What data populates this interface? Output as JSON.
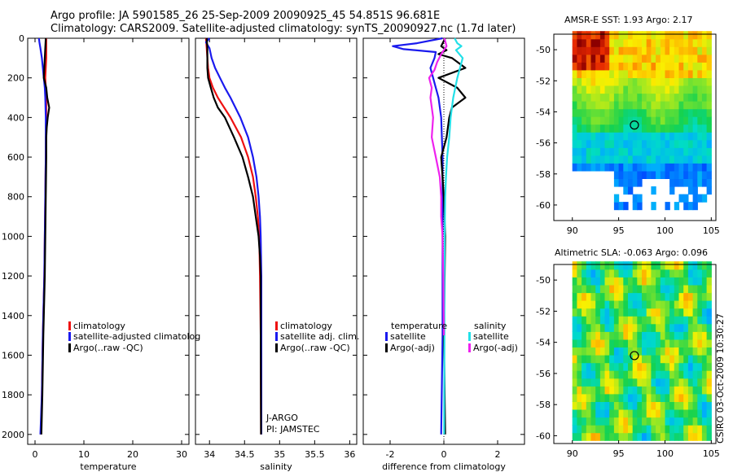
{
  "header": {
    "line1": "Argo profile: JA 5901585_26 25-Sep-2009 20090925_45 54.851S 96.681E",
    "line2": "Climatology: CARS2009. Satellite-adjusted climatology: synTS_20090927.nc (1.7d later)"
  },
  "credit": "CSIRO 03-Oct-2009 10:30:27",
  "colors": {
    "climatology": "#ee1111",
    "satellite": "#1a1aee",
    "argo": "#000000",
    "salinity_satellite": "#22e0e8",
    "salinity_argo": "#ee22ee"
  },
  "chart_data": [
    {
      "type": "line",
      "id": "temperature",
      "xlabel": "temperature",
      "ylabel": "",
      "xlim": [
        -1.5,
        31.5
      ],
      "ylim": [
        2050,
        0
      ],
      "xticks": [
        "0",
        "10",
        "20",
        "30"
      ],
      "yticks": [
        "0",
        "200",
        "400",
        "600",
        "800",
        "1000",
        "1200",
        "1400",
        "1600",
        "1800",
        "2000"
      ],
      "legend": [
        "climatology",
        "satellite-adjusted climatolog",
        "Argo(..raw -QC)"
      ],
      "series": [
        {
          "name": "climatology",
          "color": "#ee1111",
          "depth": [
            0,
            50,
            100,
            150,
            200,
            250,
            300,
            400,
            600,
            800,
            1000,
            1200,
            1500,
            1800,
            2000
          ],
          "values": [
            2.3,
            2.3,
            2.3,
            2.2,
            2.1,
            2.2,
            2.3,
            2.3,
            2.2,
            2.1,
            2.0,
            1.9,
            1.6,
            1.4,
            1.2
          ]
        },
        {
          "name": "satellite-adjusted climatolog",
          "color": "#1a1aee",
          "depth": [
            0,
            20,
            50,
            100,
            150,
            200,
            250,
            300,
            400,
            600,
            800,
            1000,
            1200,
            1500,
            1800,
            2000
          ],
          "values": [
            0.8,
            0.9,
            1.1,
            1.4,
            1.6,
            1.8,
            2.0,
            2.1,
            2.2,
            2.2,
            2.1,
            2.0,
            1.9,
            1.6,
            1.4,
            1.1
          ]
        },
        {
          "name": "Argo(..raw -QC)",
          "color": "#000000",
          "depth": [
            0,
            50,
            100,
            150,
            200,
            250,
            300,
            350,
            400,
            450,
            500,
            600,
            800,
            1000,
            1200,
            1500,
            1800,
            2000
          ],
          "values": [
            2.2,
            2.1,
            2.0,
            1.9,
            1.8,
            2.3,
            2.5,
            2.9,
            2.6,
            2.4,
            2.3,
            2.3,
            2.2,
            2.1,
            2.0,
            1.7,
            1.5,
            1.3
          ]
        }
      ]
    },
    {
      "type": "line",
      "id": "salinity",
      "xlabel": "salinity",
      "ylabel": "",
      "xlim": [
        33.8,
        36.1
      ],
      "ylim": [
        2050,
        0
      ],
      "xticks": [
        "34",
        "34.5",
        "35",
        "35.5",
        "36"
      ],
      "legend": [
        "climatology",
        "satellite adj. clim.",
        "Argo(..raw -QC)"
      ],
      "annotations": [
        "J-ARGO",
        "PI: JAMSTEC"
      ],
      "series": [
        {
          "name": "climatology",
          "color": "#ee1111",
          "depth": [
            0,
            50,
            100,
            150,
            200,
            250,
            300,
            400,
            500,
            600,
            700,
            800,
            900,
            1000,
            1200,
            1500,
            2000
          ],
          "values": [
            33.95,
            33.96,
            33.97,
            33.98,
            34.0,
            34.05,
            34.12,
            34.3,
            34.45,
            34.55,
            34.62,
            34.66,
            34.69,
            34.71,
            34.72,
            34.73,
            34.735
          ]
        },
        {
          "name": "satellite adj. clim.",
          "color": "#1a1aee",
          "depth": [
            0,
            20,
            50,
            100,
            150,
            200,
            250,
            300,
            400,
            500,
            600,
            700,
            800,
            900,
            1000,
            1200,
            1500,
            2000
          ],
          "values": [
            34.0,
            33.95,
            34.0,
            34.03,
            34.08,
            34.15,
            34.22,
            34.3,
            34.44,
            34.55,
            34.62,
            34.67,
            34.7,
            34.72,
            34.73,
            34.74,
            34.74,
            34.74
          ]
        },
        {
          "name": "Argo(..raw -QC)",
          "color": "#000000",
          "depth": [
            0,
            50,
            100,
            150,
            200,
            250,
            300,
            350,
            400,
            500,
            600,
            700,
            800,
            900,
            1000,
            1100,
            1200,
            1500,
            2000
          ],
          "values": [
            33.96,
            33.97,
            33.97,
            33.97,
            33.98,
            34.02,
            34.06,
            34.12,
            34.22,
            34.35,
            34.47,
            34.55,
            34.62,
            34.66,
            34.7,
            34.72,
            34.73,
            34.73,
            34.735
          ]
        }
      ]
    },
    {
      "type": "line",
      "id": "difference",
      "xlabel": "difference from climatology",
      "ylabel": "",
      "xlim": [
        -3.0,
        3.0
      ],
      "ylim": [
        2050,
        0
      ],
      "xticks": [
        "-2",
        "0",
        "2"
      ],
      "legend_temperature_title": "temperature",
      "legend_salinity_title": "salinity",
      "legend": [
        "satellite",
        "Argo(-adj)",
        "satellite",
        "Argo(-adj)"
      ],
      "series": [
        {
          "name": "temperature satellite",
          "color": "#1a1aee",
          "depth": [
            0,
            25,
            40,
            55,
            70,
            100,
            150,
            200,
            250,
            300,
            400,
            600,
            1000,
            1500,
            2000
          ],
          "values": [
            -0.05,
            -1.0,
            -1.9,
            -1.5,
            -0.3,
            -0.35,
            -0.5,
            -0.4,
            -0.3,
            -0.2,
            -0.1,
            -0.05,
            -0.05,
            -0.05,
            -0.1
          ]
        },
        {
          "name": "temperature Argo(-adj)",
          "color": "#000000",
          "depth": [
            0,
            40,
            60,
            80,
            100,
            150,
            200,
            250,
            300,
            350,
            400,
            500,
            600,
            800,
            1000,
            1500,
            2000
          ],
          "values": [
            0.05,
            -0.1,
            0.1,
            -0.2,
            0.3,
            0.8,
            -0.2,
            0.5,
            0.8,
            0.3,
            0.2,
            0.1,
            -0.1,
            0.0,
            0.05,
            0.0,
            0.05
          ]
        },
        {
          "name": "salinity satellite",
          "color": "#22e0e8",
          "depth": [
            0,
            25,
            40,
            60,
            100,
            150,
            200,
            300,
            400,
            500,
            600,
            700,
            800,
            1000,
            1200,
            1500,
            2000
          ],
          "values": [
            0.4,
            0.5,
            0.65,
            0.45,
            0.7,
            0.6,
            0.5,
            0.35,
            0.25,
            0.2,
            0.12,
            0.08,
            0.05,
            0.03,
            0.02,
            0.02,
            0.01
          ]
        },
        {
          "name": "salinity Argo(-adj)",
          "color": "#ee22ee",
          "depth": [
            0,
            40,
            80,
            120,
            160,
            200,
            250,
            300,
            400,
            500,
            600,
            700,
            800,
            900,
            1000,
            1200,
            1500
          ],
          "values": [
            0.02,
            0.1,
            -0.1,
            -0.25,
            -0.35,
            -0.55,
            -0.45,
            -0.5,
            -0.4,
            -0.45,
            -0.3,
            -0.15,
            -0.1,
            -0.1,
            -0.05,
            -0.02,
            0.0
          ]
        }
      ]
    },
    {
      "type": "heatmap",
      "id": "sst",
      "title": "AMSR-E SST: 1.93 Argo: 2.17",
      "xlim": [
        88,
        105.5
      ],
      "ylim": [
        -61,
        -49
      ],
      "xticks": [
        "90",
        "95",
        "100",
        "105"
      ],
      "yticks": [
        "-50",
        "-52",
        "-54",
        "-56",
        "-58",
        "-60"
      ],
      "marker": {
        "lon": 96.7,
        "lat": -54.85
      }
    },
    {
      "type": "heatmap",
      "id": "sla",
      "title": "Altimetric SLA: -0.063 Argo: 0.096",
      "xlim": [
        88,
        105.5
      ],
      "ylim": [
        -60.5,
        -49
      ],
      "xticks": [
        "90",
        "95",
        "100",
        "105"
      ],
      "yticks": [
        "-50",
        "-52",
        "-54",
        "-56",
        "-58",
        "-60"
      ],
      "marker": {
        "lon": 96.7,
        "lat": -54.85
      }
    }
  ]
}
